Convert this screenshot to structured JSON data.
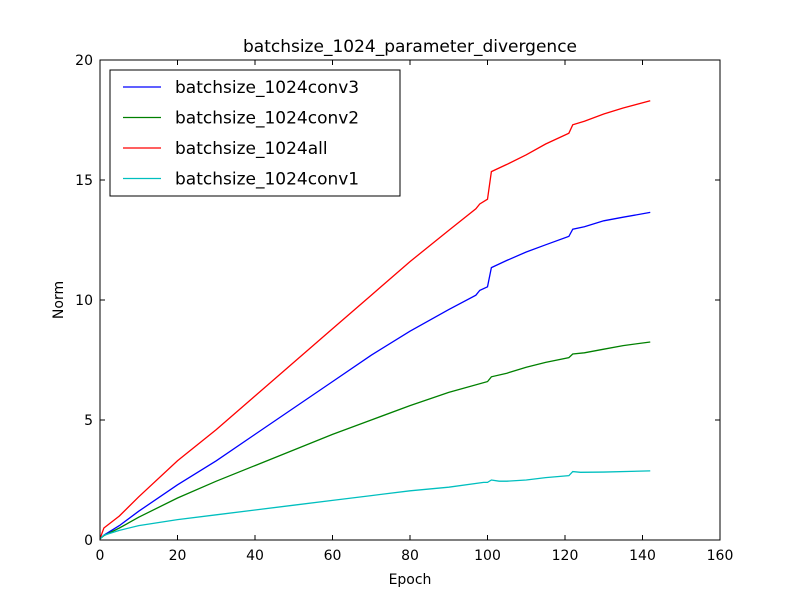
{
  "chart_data": {
    "type": "line",
    "title": "batchsize_1024_parameter_divergence",
    "xlabel": "Epoch",
    "ylabel": "Norm",
    "xlim": [
      0,
      160
    ],
    "ylim": [
      0,
      20
    ],
    "xticks": [
      "0",
      "20",
      "40",
      "60",
      "80",
      "100",
      "120",
      "140",
      "160"
    ],
    "yticks": [
      "0",
      "5",
      "10",
      "15",
      "20"
    ],
    "grid": false,
    "legend_position": "top-left",
    "series": [
      {
        "name": "batchsize_1024conv3",
        "color": "#0000ff",
        "points": [
          [
            0,
            0.05
          ],
          [
            1,
            0.2
          ],
          [
            5,
            0.6
          ],
          [
            10,
            1.2
          ],
          [
            20,
            2.3
          ],
          [
            30,
            3.3
          ],
          [
            40,
            4.4
          ],
          [
            50,
            5.5
          ],
          [
            60,
            6.6
          ],
          [
            70,
            7.7
          ],
          [
            80,
            8.7
          ],
          [
            90,
            9.6
          ],
          [
            97,
            10.2
          ],
          [
            98,
            10.4
          ],
          [
            100,
            10.55
          ],
          [
            101,
            11.35
          ],
          [
            105,
            11.65
          ],
          [
            110,
            12.0
          ],
          [
            115,
            12.3
          ],
          [
            121,
            12.65
          ],
          [
            122,
            12.95
          ],
          [
            125,
            13.05
          ],
          [
            130,
            13.3
          ],
          [
            135,
            13.45
          ],
          [
            142,
            13.65
          ]
        ]
      },
      {
        "name": "batchsize_1024conv2",
        "color": "#008000",
        "points": [
          [
            0,
            0.05
          ],
          [
            1,
            0.18
          ],
          [
            5,
            0.5
          ],
          [
            10,
            0.95
          ],
          [
            20,
            1.75
          ],
          [
            30,
            2.45
          ],
          [
            40,
            3.1
          ],
          [
            50,
            3.75
          ],
          [
            60,
            4.4
          ],
          [
            70,
            5.0
          ],
          [
            80,
            5.6
          ],
          [
            90,
            6.15
          ],
          [
            100,
            6.6
          ],
          [
            101,
            6.8
          ],
          [
            105,
            6.95
          ],
          [
            110,
            7.2
          ],
          [
            115,
            7.4
          ],
          [
            121,
            7.6
          ],
          [
            122,
            7.75
          ],
          [
            125,
            7.8
          ],
          [
            130,
            7.95
          ],
          [
            135,
            8.1
          ],
          [
            142,
            8.25
          ]
        ]
      },
      {
        "name": "batchsize_1024all",
        "color": "#ff0000",
        "points": [
          [
            0,
            0.05
          ],
          [
            1,
            0.5
          ],
          [
            5,
            1.0
          ],
          [
            10,
            1.8
          ],
          [
            20,
            3.3
          ],
          [
            30,
            4.6
          ],
          [
            40,
            6.0
          ],
          [
            50,
            7.4
          ],
          [
            60,
            8.8
          ],
          [
            70,
            10.2
          ],
          [
            80,
            11.6
          ],
          [
            90,
            12.9
          ],
          [
            97,
            13.8
          ],
          [
            98,
            14.0
          ],
          [
            100,
            14.2
          ],
          [
            101,
            15.35
          ],
          [
            105,
            15.65
          ],
          [
            110,
            16.05
          ],
          [
            115,
            16.5
          ],
          [
            121,
            16.95
          ],
          [
            122,
            17.3
          ],
          [
            125,
            17.45
          ],
          [
            130,
            17.75
          ],
          [
            135,
            18.0
          ],
          [
            142,
            18.3
          ]
        ]
      },
      {
        "name": "batchsize_1024conv1",
        "color": "#00bfbf",
        "points": [
          [
            0,
            0.05
          ],
          [
            1,
            0.2
          ],
          [
            5,
            0.4
          ],
          [
            10,
            0.6
          ],
          [
            20,
            0.85
          ],
          [
            30,
            1.05
          ],
          [
            40,
            1.25
          ],
          [
            50,
            1.45
          ],
          [
            60,
            1.65
          ],
          [
            70,
            1.85
          ],
          [
            80,
            2.05
          ],
          [
            90,
            2.2
          ],
          [
            99,
            2.4
          ],
          [
            100,
            2.4
          ],
          [
            101,
            2.5
          ],
          [
            103,
            2.45
          ],
          [
            105,
            2.45
          ],
          [
            110,
            2.5
          ],
          [
            115,
            2.6
          ],
          [
            121,
            2.68
          ],
          [
            122,
            2.85
          ],
          [
            124,
            2.82
          ],
          [
            130,
            2.83
          ],
          [
            142,
            2.88
          ]
        ]
      }
    ]
  }
}
